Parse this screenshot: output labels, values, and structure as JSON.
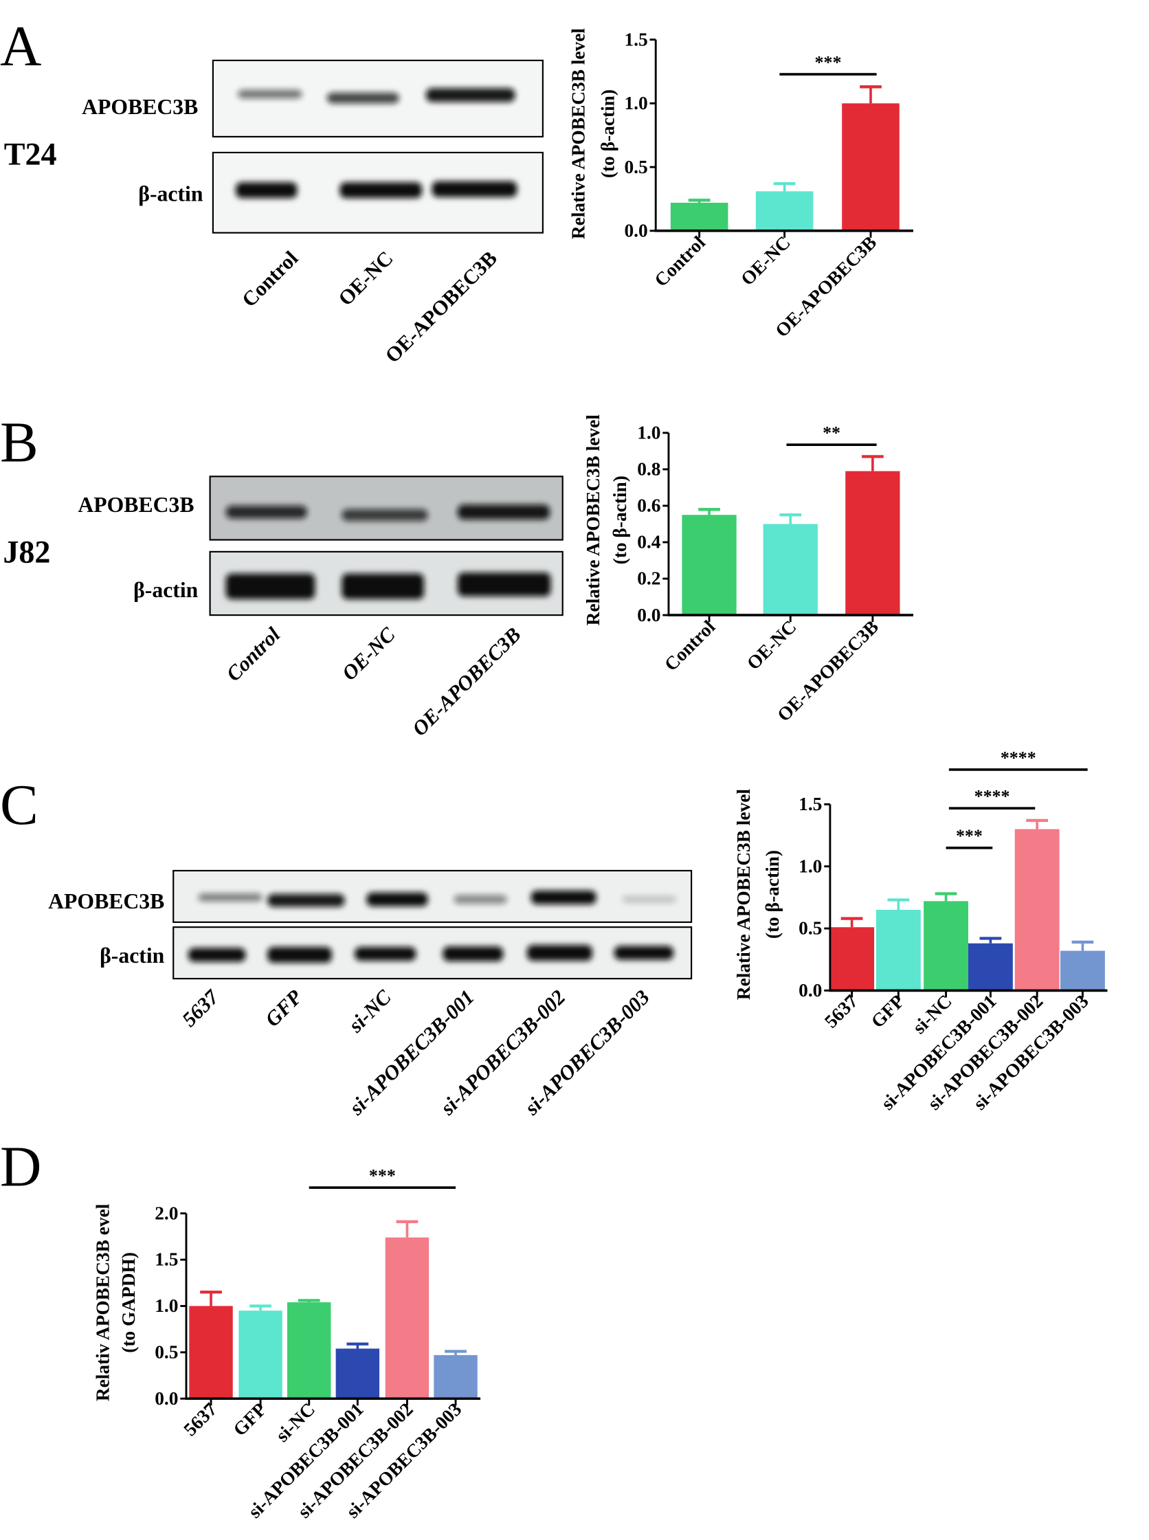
{
  "panels": [
    {
      "letter": "A",
      "cell_line": "T24",
      "proteins": [
        "APOBEC3B",
        "β-actin"
      ],
      "lanes": [
        "Control",
        "OE-NC",
        "OE-APOBEC3B"
      ]
    },
    {
      "letter": "B",
      "cell_line": "J82",
      "proteins": [
        "APOBEC3B",
        "β-actin"
      ],
      "lanes": [
        "Control",
        "OE-NC",
        "OE-APOBEC3B"
      ]
    },
    {
      "letter": "C",
      "cell_line": "",
      "proteins": [
        "APOBEC3B",
        "β-actin"
      ],
      "lanes": [
        "5637",
        "GFP",
        "si-NC",
        "si-APOBEC3B-001",
        "si-APOBEC3B-002",
        "si-APOBEC3B-003"
      ]
    },
    {
      "letter": "D"
    }
  ],
  "colors": {
    "red": "#e32b36",
    "cyan": "#5ce5cf",
    "green": "#3bcd6e",
    "blue": "#2b49b1",
    "pink": "#f47b88",
    "lightblue": "#7496d0"
  },
  "chart_data": [
    {
      "type": "bar",
      "panel": "A",
      "categories": [
        "Control",
        "OE-NC",
        "OE-APOBEC3B"
      ],
      "values": [
        0.22,
        0.31,
        1.0
      ],
      "errors": [
        0.02,
        0.06,
        0.13
      ],
      "colors": [
        "#3bcd6e",
        "#5ce5cf",
        "#e32b36"
      ],
      "ylabel": [
        "Relative APOBEC3B level",
        "(to β-actin)"
      ],
      "ylim": [
        0,
        1.5
      ],
      "yticks": [
        0,
        0.5,
        1.0,
        1.5
      ],
      "significance": [
        {
          "from": 1,
          "to": 2,
          "label": "***"
        }
      ]
    },
    {
      "type": "bar",
      "panel": "B",
      "categories": [
        "Control",
        "OE-NC",
        "OE-APOBEC3B"
      ],
      "values": [
        0.55,
        0.5,
        0.79
      ],
      "errors": [
        0.03,
        0.05,
        0.08
      ],
      "colors": [
        "#3bcd6e",
        "#5ce5cf",
        "#e32b36"
      ],
      "ylabel": [
        "Relative APOBEC3B level",
        "(to β-actin)"
      ],
      "ylim": [
        0,
        1.0
      ],
      "yticks": [
        0,
        0.2,
        0.4,
        0.6,
        0.8,
        1.0
      ],
      "significance": [
        {
          "from": 1,
          "to": 2,
          "label": "**"
        }
      ]
    },
    {
      "type": "bar",
      "panel": "C",
      "categories": [
        "5637",
        "GFP",
        "si-NC",
        "si-APOBEC3B-001",
        "si-APOBEC3B-002",
        "si-APOBEC3B-003"
      ],
      "values": [
        0.51,
        0.65,
        0.72,
        0.38,
        1.3,
        0.32
      ],
      "errors": [
        0.07,
        0.08,
        0.06,
        0.04,
        0.07,
        0.07
      ],
      "colors": [
        "#e32b36",
        "#5ce5cf",
        "#3bcd6e",
        "#2b49b1",
        "#f47b88",
        "#7496d0"
      ],
      "ylabel": [
        "Relative APOBEC3B  level",
        "(to β-actin)"
      ],
      "ylim": [
        0,
        1.5
      ],
      "yticks": [
        0,
        0.5,
        1.0,
        1.5
      ],
      "significance": [
        {
          "from": 2,
          "to": 3,
          "label": "***"
        },
        {
          "from": 2,
          "to": 4,
          "label": "****"
        },
        {
          "from": 2,
          "to": 5,
          "label": "****"
        }
      ]
    },
    {
      "type": "bar",
      "panel": "D",
      "categories": [
        "5637",
        "GFP",
        "si-NC",
        "si-APOBEC3B-001",
        "si-APOBEC3B-002",
        "si-APOBEC3B-003"
      ],
      "values": [
        1.0,
        0.95,
        1.04,
        0.54,
        1.74,
        0.47
      ],
      "errors": [
        0.15,
        0.05,
        0.02,
        0.05,
        0.17,
        0.04
      ],
      "colors": [
        "#e32b36",
        "#5ce5cf",
        "#3bcd6e",
        "#2b49b1",
        "#f47b88",
        "#7496d0"
      ],
      "ylabel": [
        "Relativ APOBEC3B evel",
        "(to GAPDH)"
      ],
      "ylim": [
        0,
        2.0
      ],
      "yticks": [
        0,
        0.5,
        1.0,
        1.5,
        2.0
      ],
      "significance": [
        {
          "from": 2,
          "to": 5,
          "label": "***"
        }
      ]
    }
  ]
}
